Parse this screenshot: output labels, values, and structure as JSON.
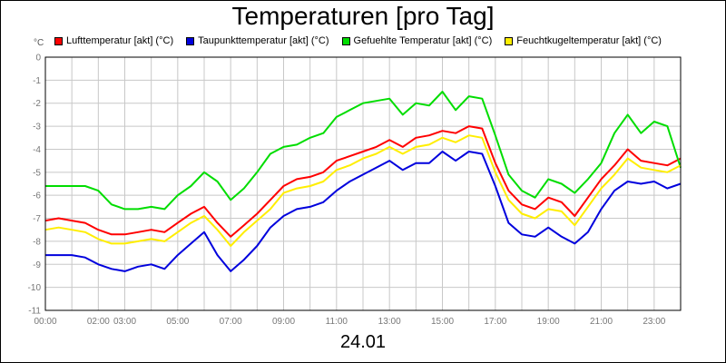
{
  "window": {
    "title": "Temperaturen [pro Tag]",
    "date_label": "24.01",
    "unit_label": "°C"
  },
  "chart_data": {
    "type": "line",
    "title": "Temperaturen [pro Tag]",
    "xlabel": "24.01",
    "ylabel": "°C",
    "xlim": [
      0,
      24
    ],
    "ylim": [
      -11,
      0
    ],
    "grid": true,
    "legend_position": "top",
    "y_ticks": [
      "0",
      "-1",
      "-2",
      "-3",
      "-4",
      "-5",
      "-6",
      "-7",
      "-8",
      "-9",
      "-10",
      "-11"
    ],
    "y_tick_values": [
      0,
      -1,
      -2,
      -3,
      -4,
      -5,
      -6,
      -7,
      -8,
      -9,
      -10,
      -11
    ],
    "x_ticks": [
      "00:00",
      "02:00",
      "03:00",
      "05:00",
      "07:00",
      "09:00",
      "11:00",
      "13:00",
      "15:00",
      "17:00",
      "19:00",
      "21:00",
      "23:00"
    ],
    "x_tick_values": [
      0,
      2,
      3,
      5,
      7,
      9,
      11,
      13,
      15,
      17,
      19,
      21,
      23
    ],
    "x": [
      0,
      0.5,
      1,
      1.5,
      2,
      2.5,
      3,
      3.5,
      4,
      4.5,
      5,
      5.5,
      6,
      6.5,
      7,
      7.5,
      8,
      8.5,
      9,
      9.5,
      10,
      10.5,
      11,
      11.5,
      12,
      12.5,
      13,
      13.5,
      14,
      14.5,
      15,
      15.5,
      16,
      16.5,
      17,
      17.5,
      18,
      18.5,
      19,
      19.5,
      20,
      20.5,
      21,
      21.5,
      22,
      22.5,
      23,
      23.5,
      24
    ],
    "series": [
      {
        "name": "Lufttemperatur [akt] (°C)",
        "color": "#ff0000",
        "values": [
          -7.1,
          -7.0,
          -7.1,
          -7.2,
          -7.5,
          -7.7,
          -7.7,
          -7.6,
          -7.5,
          -7.6,
          -7.2,
          -6.8,
          -6.5,
          -7.2,
          -7.8,
          -7.3,
          -6.8,
          -6.2,
          -5.6,
          -5.3,
          -5.2,
          -5.0,
          -4.5,
          -4.3,
          -4.1,
          -3.9,
          -3.6,
          -3.9,
          -3.5,
          -3.4,
          -3.2,
          -3.3,
          -3.0,
          -3.1,
          -4.6,
          -5.8,
          -6.4,
          -6.6,
          -6.1,
          -6.3,
          -6.9,
          -6.1,
          -5.3,
          -4.7,
          -4.0,
          -4.5,
          -4.6,
          -4.7,
          -4.4
        ]
      },
      {
        "name": "Taupunkttemperatur [akt] (°C)",
        "color": "#0000dd",
        "values": [
          -8.6,
          -8.6,
          -8.6,
          -8.7,
          -9.0,
          -9.2,
          -9.3,
          -9.1,
          -9.0,
          -9.2,
          -8.6,
          -8.1,
          -7.6,
          -8.6,
          -9.3,
          -8.8,
          -8.2,
          -7.4,
          -6.9,
          -6.6,
          -6.5,
          -6.3,
          -5.8,
          -5.4,
          -5.1,
          -4.8,
          -4.5,
          -4.9,
          -4.6,
          -4.6,
          -4.1,
          -4.5,
          -4.1,
          -4.2,
          -5.6,
          -7.2,
          -7.7,
          -7.8,
          -7.4,
          -7.8,
          -8.1,
          -7.6,
          -6.6,
          -5.8,
          -5.4,
          -5.5,
          -5.4,
          -5.7,
          -5.5
        ]
      },
      {
        "name": "Gefuehlte Temperatur [akt] (°C)",
        "color": "#00dd00",
        "values": [
          -5.6,
          -5.6,
          -5.6,
          -5.6,
          -5.8,
          -6.4,
          -6.6,
          -6.6,
          -6.5,
          -6.6,
          -6.0,
          -5.6,
          -5.0,
          -5.4,
          -6.2,
          -5.7,
          -5.0,
          -4.2,
          -3.9,
          -3.8,
          -3.5,
          -3.3,
          -2.6,
          -2.3,
          -2.0,
          -1.9,
          -1.8,
          -2.5,
          -2.0,
          -2.1,
          -1.5,
          -2.3,
          -1.7,
          -1.8,
          -3.4,
          -5.1,
          -5.8,
          -6.1,
          -5.3,
          -5.5,
          -5.9,
          -5.3,
          -4.6,
          -3.3,
          -2.5,
          -3.3,
          -2.8,
          -3.0,
          -4.8
        ]
      },
      {
        "name": "Feuchtkugeltemperatur [akt] (°C)",
        "color": "#ffee00",
        "values": [
          -7.5,
          -7.4,
          -7.5,
          -7.6,
          -7.9,
          -8.1,
          -8.1,
          -8.0,
          -7.9,
          -8.0,
          -7.6,
          -7.2,
          -6.9,
          -7.5,
          -8.2,
          -7.6,
          -7.1,
          -6.6,
          -5.9,
          -5.7,
          -5.6,
          -5.4,
          -4.9,
          -4.7,
          -4.4,
          -4.2,
          -3.9,
          -4.2,
          -3.9,
          -3.8,
          -3.5,
          -3.7,
          -3.4,
          -3.5,
          -5.0,
          -6.2,
          -6.8,
          -7.0,
          -6.6,
          -6.7,
          -7.3,
          -6.5,
          -5.7,
          -5.1,
          -4.4,
          -4.8,
          -4.9,
          -5.0,
          -4.7
        ]
      }
    ]
  }
}
